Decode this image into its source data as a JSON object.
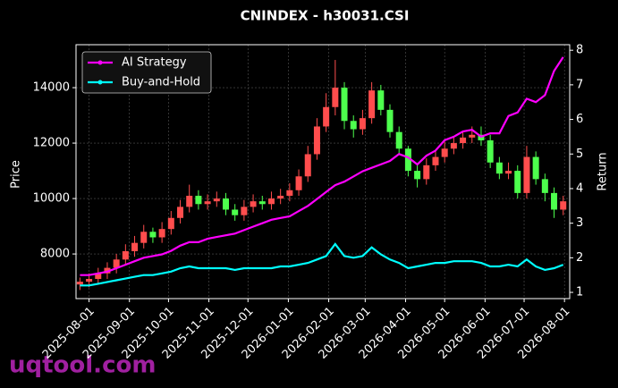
{
  "chart_data": {
    "type": "candlestick",
    "title": "CNINDEX - h30031.CSI",
    "y_label": "Price",
    "y2_label": "Return",
    "watermark": "uqtool.com",
    "grid": true,
    "legend": "upper left",
    "up_color": "#ff4d4d",
    "down_color": "#4dff4d",
    "xlim": [
      "2025-07-22",
      "2026-08-05"
    ],
    "xticks": [
      "2025-08-01",
      "2025-09-01",
      "2025-10-01",
      "2025-11-01",
      "2025-12-01",
      "2026-01-01",
      "2026-02-01",
      "2026-03-01",
      "2026-04-01",
      "2026-05-01",
      "2026-06-01",
      "2026-07-01",
      "2026-08-01"
    ],
    "ylim": [
      6390,
      15550
    ],
    "yticks": [
      8000,
      10000,
      12000,
      14000
    ],
    "y2lim": [
      0.82,
      8.16
    ],
    "y2ticks": [
      1,
      2,
      3,
      4,
      5,
      6,
      7,
      8
    ],
    "x": [
      "2025-07-25",
      "2025-08-01",
      "2025-08-08",
      "2025-08-15",
      "2025-08-22",
      "2025-08-29",
      "2025-09-05",
      "2025-09-12",
      "2025-09-19",
      "2025-09-26",
      "2025-10-03",
      "2025-10-10",
      "2025-10-17",
      "2025-10-24",
      "2025-10-31",
      "2025-11-07",
      "2025-11-14",
      "2025-11-21",
      "2025-11-28",
      "2025-12-05",
      "2025-12-12",
      "2025-12-19",
      "2025-12-26",
      "2026-01-02",
      "2026-01-09",
      "2026-01-16",
      "2026-01-23",
      "2026-01-30",
      "2026-02-06",
      "2026-02-13",
      "2026-02-20",
      "2026-02-27",
      "2026-03-06",
      "2026-03-13",
      "2026-03-20",
      "2026-03-27",
      "2026-04-03",
      "2026-04-10",
      "2026-04-17",
      "2026-04-24",
      "2026-05-01",
      "2026-05-08",
      "2026-05-15",
      "2026-05-22",
      "2026-05-29",
      "2026-06-05",
      "2026-06-12",
      "2026-06-19",
      "2026-06-26",
      "2026-07-03",
      "2026-07-10",
      "2026-07-17",
      "2026-07-24",
      "2026-07-31"
    ],
    "open": [
      6900,
      7000,
      7100,
      7300,
      7500,
      7800,
      8100,
      8400,
      8800,
      8600,
      8900,
      9300,
      9700,
      10100,
      9800,
      9900,
      10000,
      9600,
      9400,
      9700,
      9900,
      9800,
      10000,
      10100,
      10300,
      10800,
      11600,
      12600,
      13300,
      14000,
      12800,
      12500,
      12900,
      13900,
      13200,
      12400,
      11800,
      11000,
      10700,
      11200,
      11500,
      11800,
      12000,
      12200,
      12300,
      12100,
      11300,
      10900,
      11000,
      10200,
      11500,
      10700,
      10200,
      9600
    ],
    "high": [
      7150,
      7300,
      7500,
      7700,
      8000,
      8350,
      8650,
      9050,
      8950,
      9150,
      9550,
      9950,
      10500,
      10300,
      10150,
      10250,
      10200,
      9800,
      9950,
      10150,
      10100,
      10250,
      10350,
      10550,
      11050,
      11900,
      12900,
      13800,
      15000,
      14200,
      13000,
      13200,
      14200,
      14100,
      13400,
      12600,
      11900,
      11200,
      11450,
      11750,
      12050,
      12250,
      12450,
      12600,
      12600,
      12300,
      11500,
      11300,
      11200,
      11900,
      11700,
      10900,
      10400,
      10100
    ],
    "low": [
      6700,
      6800,
      6900,
      7100,
      7300,
      7600,
      7900,
      8200,
      8400,
      8400,
      8700,
      9100,
      9500,
      9600,
      9600,
      9700,
      9400,
      9200,
      9200,
      9500,
      9600,
      9600,
      9800,
      9900,
      10100,
      10600,
      11400,
      12400,
      13000,
      12500,
      12200,
      12300,
      12700,
      13000,
      12200,
      11600,
      10800,
      10400,
      10500,
      11000,
      11300,
      11600,
      11800,
      12000,
      11900,
      11100,
      10700,
      10700,
      10000,
      10000,
      10500,
      9900,
      9300,
      9400
    ],
    "close": [
      7000,
      7100,
      7300,
      7500,
      7800,
      8100,
      8400,
      8800,
      8600,
      8900,
      9300,
      9700,
      10100,
      9800,
      9900,
      10000,
      9600,
      9400,
      9700,
      9900,
      9800,
      10000,
      10100,
      10300,
      10800,
      11600,
      12600,
      13300,
      14000,
      12800,
      12500,
      12900,
      13900,
      13200,
      12400,
      11800,
      11000,
      10700,
      11200,
      11500,
      11800,
      12000,
      12200,
      12300,
      12100,
      11300,
      10900,
      11000,
      10200,
      11500,
      10700,
      10200,
      9600,
      9900
    ],
    "series": [
      {
        "name": "AI Strategy",
        "color": "#ff00ff",
        "axis": "y2",
        "values": [
          1.5,
          1.5,
          1.55,
          1.6,
          1.7,
          1.8,
          1.9,
          2.0,
          2.05,
          2.1,
          2.2,
          2.35,
          2.45,
          2.45,
          2.55,
          2.6,
          2.65,
          2.7,
          2.8,
          2.9,
          3.0,
          3.1,
          3.15,
          3.2,
          3.35,
          3.5,
          3.7,
          3.9,
          4.1,
          4.2,
          4.35,
          4.5,
          4.6,
          4.7,
          4.8,
          5.0,
          4.9,
          4.7,
          4.95,
          5.1,
          5.4,
          5.5,
          5.65,
          5.7,
          5.5,
          5.6,
          5.6,
          6.1,
          6.2,
          6.6,
          6.5,
          6.7,
          7.4,
          7.8
        ]
      },
      {
        "name": "Buy-and-Hold",
        "color": "#00ffff",
        "axis": "y2",
        "values": [
          1.2,
          1.2,
          1.25,
          1.3,
          1.35,
          1.4,
          1.45,
          1.5,
          1.5,
          1.55,
          1.6,
          1.7,
          1.75,
          1.7,
          1.7,
          1.7,
          1.7,
          1.65,
          1.7,
          1.7,
          1.7,
          1.7,
          1.75,
          1.75,
          1.8,
          1.85,
          1.95,
          2.05,
          2.4,
          2.05,
          2.0,
          2.05,
          2.3,
          2.1,
          1.95,
          1.85,
          1.7,
          1.75,
          1.8,
          1.85,
          1.85,
          1.9,
          1.9,
          1.9,
          1.85,
          1.75,
          1.75,
          1.8,
          1.75,
          1.95,
          1.75,
          1.65,
          1.7,
          1.8
        ]
      }
    ]
  }
}
